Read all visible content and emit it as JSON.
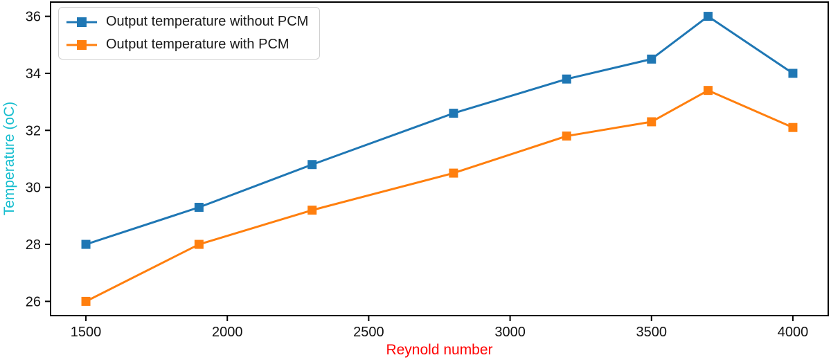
{
  "figure": {
    "background": "#ffffff",
    "axis_color": "#000000",
    "tick_label_color": "#111111"
  },
  "chart_data": {
    "type": "line",
    "title": "",
    "xlabel": "Reynold number",
    "ylabel": "Temperature (oC)",
    "xlabel_color": "#ff0000",
    "ylabel_color": "#17becf",
    "x": [
      1500,
      1900,
      2300,
      2800,
      3200,
      3500,
      3700,
      4000
    ],
    "series": [
      {
        "name": "Output temperature without PCM",
        "color": "#1f77b4",
        "marker": "square",
        "values": [
          28.0,
          29.3,
          30.8,
          32.6,
          33.8,
          34.5,
          36.0,
          34.0
        ]
      },
      {
        "name": "Output temperature with PCM",
        "color": "#ff7f0e",
        "marker": "square",
        "values": [
          26.0,
          28.0,
          29.2,
          30.5,
          31.8,
          32.3,
          33.4,
          32.1
        ]
      }
    ],
    "x_ticks": [
      1500,
      2000,
      2500,
      3000,
      3500,
      4000
    ],
    "y_ticks": [
      26,
      28,
      30,
      32,
      34,
      36
    ],
    "xlim": [
      1375,
      4125
    ],
    "ylim": [
      25.5,
      36.5
    ],
    "grid": false,
    "legend_position": "upper-left"
  }
}
